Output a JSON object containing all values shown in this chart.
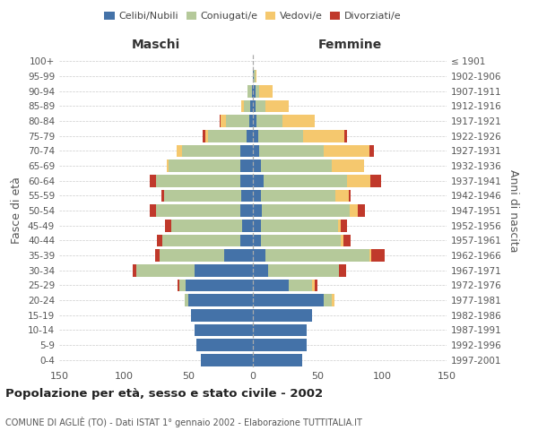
{
  "age_groups": [
    "0-4",
    "5-9",
    "10-14",
    "15-19",
    "20-24",
    "25-29",
    "30-34",
    "35-39",
    "40-44",
    "45-49",
    "50-54",
    "55-59",
    "60-64",
    "65-69",
    "70-74",
    "75-79",
    "80-84",
    "85-89",
    "90-94",
    "95-99",
    "100+"
  ],
  "birth_years": [
    "1997-2001",
    "1992-1996",
    "1987-1991",
    "1982-1986",
    "1977-1981",
    "1972-1976",
    "1967-1971",
    "1962-1966",
    "1957-1961",
    "1952-1956",
    "1947-1951",
    "1942-1946",
    "1937-1941",
    "1932-1936",
    "1927-1931",
    "1922-1926",
    "1917-1921",
    "1912-1916",
    "1907-1911",
    "1902-1906",
    "≤ 1901"
  ],
  "maschi": {
    "celibi": [
      40,
      44,
      45,
      48,
      50,
      52,
      45,
      22,
      10,
      8,
      10,
      9,
      10,
      10,
      10,
      5,
      3,
      2,
      1,
      0,
      0
    ],
    "coniugati": [
      0,
      0,
      0,
      0,
      3,
      5,
      45,
      50,
      60,
      55,
      65,
      60,
      65,
      55,
      45,
      30,
      18,
      5,
      3,
      0,
      0
    ],
    "vedovi": [
      0,
      0,
      0,
      0,
      0,
      0,
      0,
      0,
      0,
      0,
      0,
      0,
      0,
      2,
      4,
      2,
      4,
      2,
      0,
      0,
      0
    ],
    "divorziati": [
      0,
      0,
      0,
      0,
      0,
      1,
      3,
      4,
      4,
      5,
      5,
      2,
      5,
      0,
      0,
      2,
      1,
      0,
      0,
      0,
      0
    ]
  },
  "femmine": {
    "nubili": [
      38,
      42,
      42,
      46,
      55,
      28,
      12,
      10,
      6,
      6,
      7,
      6,
      8,
      6,
      5,
      4,
      3,
      2,
      2,
      1,
      0
    ],
    "coniugate": [
      0,
      0,
      0,
      0,
      6,
      18,
      55,
      80,
      62,
      60,
      68,
      58,
      65,
      55,
      50,
      35,
      20,
      8,
      3,
      1,
      0
    ],
    "vedove": [
      0,
      0,
      0,
      0,
      2,
      2,
      0,
      2,
      2,
      2,
      6,
      10,
      18,
      25,
      35,
      32,
      25,
      18,
      10,
      1,
      0
    ],
    "divorziate": [
      0,
      0,
      0,
      0,
      0,
      2,
      5,
      10,
      6,
      5,
      6,
      2,
      8,
      0,
      4,
      2,
      0,
      0,
      0,
      0,
      0
    ]
  },
  "colors": {
    "celibi_nubili": "#4472a8",
    "coniugati": "#b5c99a",
    "vedovi": "#f5c86e",
    "divorziati": "#c0392b"
  },
  "xlim": 150,
  "title": "Popolazione per età, sesso e stato civile - 2002",
  "subtitle": "COMUNE DI AGLIÈ (TO) - Dati ISTAT 1° gennaio 2002 - Elaborazione TUTTITALIA.IT",
  "ylabel_left": "Fasce di età",
  "ylabel_right": "Anni di nascita",
  "xlabel_maschi": "Maschi",
  "xlabel_femmine": "Femmine"
}
